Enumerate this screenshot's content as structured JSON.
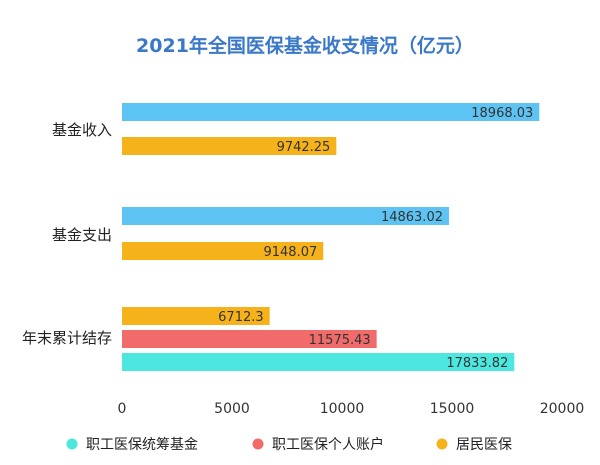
{
  "chart_data": {
    "type": "bar",
    "orientation": "horizontal",
    "title": "2021年全国医保基金收支情况（亿元）",
    "xlabel": "",
    "ylabel": "",
    "xlim": [
      0,
      20000
    ],
    "xticks": [
      0,
      5000,
      10000,
      15000,
      20000
    ],
    "grid": false,
    "legend_position": "bottom",
    "categories": [
      {
        "label": "基金收入",
        "bars": [
          {
            "series": "职工医保统筹基金",
            "value": 18968.03,
            "label": "18968.03",
            "color": "#5dc3f2"
          },
          {
            "series": "居民医保",
            "value": 9742.25,
            "label": "9742.25",
            "color": "#f6b21b"
          }
        ]
      },
      {
        "label": "基金支出",
        "bars": [
          {
            "series": "职工医保统筹基金",
            "value": 14863.02,
            "label": "14863.02",
            "color": "#5dc3f2"
          },
          {
            "series": "居民医保",
            "value": 9148.07,
            "label": "9148.07",
            "color": "#f6b21b"
          }
        ]
      },
      {
        "label": "年末累计结存",
        "bars": [
          {
            "series": "居民医保",
            "value": 6712.3,
            "label": "6712.3",
            "color": "#f6b21b"
          },
          {
            "series": "职工医保个人账户",
            "value": 11575.43,
            "label": "11575.43",
            "color": "#f26b6b"
          },
          {
            "series": "职工医保统筹基金",
            "value": 17833.82,
            "label": "17833.82",
            "color": "#4ce8e0"
          }
        ]
      }
    ],
    "legend": [
      {
        "name": "职工医保统筹基金",
        "color": "#4ce8e0"
      },
      {
        "name": "职工医保个人账户",
        "color": "#f26b6b"
      },
      {
        "name": "居民医保",
        "color": "#f6b21b"
      }
    ]
  }
}
